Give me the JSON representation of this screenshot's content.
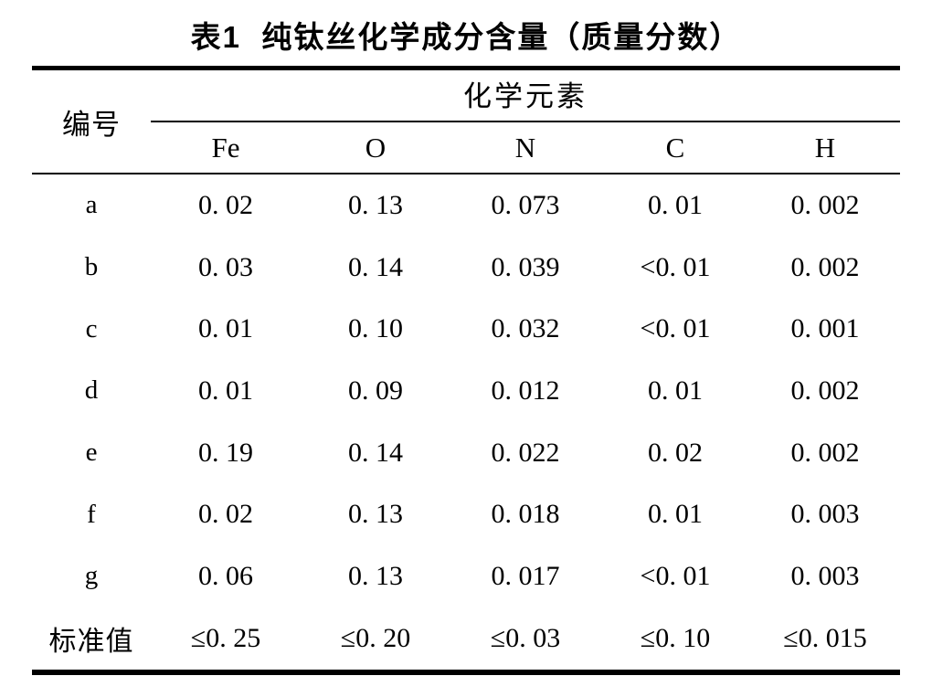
{
  "title": "表1  纯钛丝化学成分含量（质量分数）",
  "table": {
    "id_header": "编号",
    "group_header": "化学元素",
    "columns": [
      "Fe",
      "O",
      "N",
      "C",
      "H"
    ],
    "rows": [
      {
        "label": "a",
        "values": [
          "0. 02",
          "0. 13",
          "0. 073",
          "0. 01",
          "0. 002"
        ]
      },
      {
        "label": "b",
        "values": [
          "0. 03",
          "0. 14",
          "0. 039",
          "<0. 01",
          "0. 002"
        ]
      },
      {
        "label": "c",
        "values": [
          "0. 01",
          "0. 10",
          "0. 032",
          "<0. 01",
          "0. 001"
        ]
      },
      {
        "label": "d",
        "values": [
          "0. 01",
          "0. 09",
          "0. 012",
          "0. 01",
          "0. 002"
        ]
      },
      {
        "label": "e",
        "values": [
          "0. 19",
          "0. 14",
          "0. 022",
          "0. 02",
          "0. 002"
        ]
      },
      {
        "label": "f",
        "values": [
          "0. 02",
          "0. 13",
          "0. 018",
          "0. 01",
          "0. 003"
        ]
      },
      {
        "label": "g",
        "values": [
          "0. 06",
          "0. 13",
          "0. 017",
          "<0. 01",
          "0. 003"
        ]
      },
      {
        "label": "标准值",
        "values": [
          "≤0. 25",
          "≤0. 20",
          "≤0. 03",
          "≤0. 10",
          "≤0. 015"
        ]
      }
    ]
  },
  "colors": {
    "background": "#ffffff",
    "text": "#000000",
    "rule": "#000000"
  }
}
